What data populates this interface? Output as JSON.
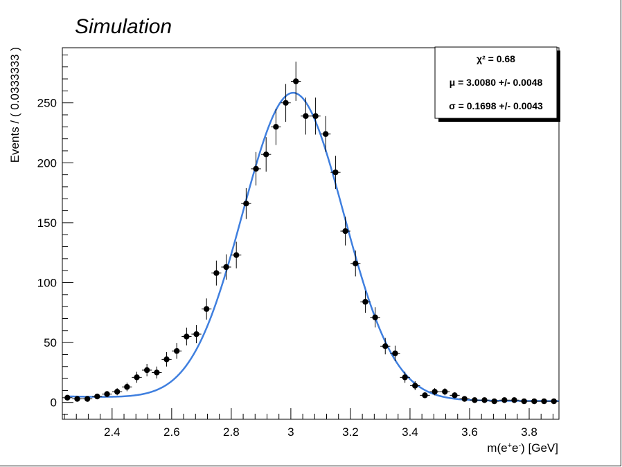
{
  "chart_data": {
    "type": "scatter",
    "title": "Simulation",
    "xlabel": "m(e⁺e⁻) [GeV]",
    "ylabel": "Events / ( 0.0333333 )",
    "xlim": [
      2.233,
      3.9
    ],
    "ylim": [
      -14,
      296
    ],
    "x_ticks": [
      2.4,
      2.6,
      2.8,
      3,
      3.2,
      3.4,
      3.6,
      3.8
    ],
    "x_tick_labels": [
      "2.4",
      "2.6",
      "2.8",
      "3",
      "3.2",
      "3.4",
      "3.6",
      "3.8"
    ],
    "y_ticks": [
      0,
      50,
      100,
      150,
      200,
      250
    ],
    "y_tick_labels": [
      "0",
      "50",
      "100",
      "150",
      "200",
      "250"
    ],
    "bin_width": 0.0333333,
    "grid": false,
    "series": [
      {
        "kind": "points-with-errors",
        "color": "#000000",
        "x": [
          2.25,
          2.283,
          2.317,
          2.35,
          2.383,
          2.417,
          2.45,
          2.483,
          2.517,
          2.55,
          2.583,
          2.617,
          2.65,
          2.683,
          2.717,
          2.75,
          2.783,
          2.817,
          2.85,
          2.883,
          2.917,
          2.95,
          2.983,
          3.017,
          3.05,
          3.083,
          3.117,
          3.15,
          3.183,
          3.217,
          3.25,
          3.283,
          3.317,
          3.35,
          3.383,
          3.417,
          3.45,
          3.483,
          3.517,
          3.55,
          3.583,
          3.617,
          3.65,
          3.683,
          3.717,
          3.75,
          3.783,
          3.817,
          3.85,
          3.883
        ],
        "y": [
          4,
          3,
          3,
          5,
          7,
          9,
          13,
          21,
          27,
          25,
          36,
          43,
          55,
          57,
          78,
          108,
          113,
          123,
          166,
          195,
          207,
          230,
          250,
          268,
          239,
          239,
          224,
          192,
          143,
          116,
          84,
          71,
          47,
          41,
          21,
          14,
          6,
          9,
          9,
          6,
          3,
          2,
          2,
          1,
          2,
          2,
          1,
          1,
          1,
          1
        ]
      },
      {
        "kind": "fit-curve",
        "color": "#3f7fdf",
        "mu": 3.008,
        "sigma": 0.1698,
        "peak": 256
      }
    ],
    "stats_box": {
      "chi2": "χ² = 0.68",
      "mu": "μ = 3.0080 +/- 0.0048",
      "sigma": "σ = 0.1698 +/- 0.0043"
    },
    "legend_position": "top-right"
  }
}
